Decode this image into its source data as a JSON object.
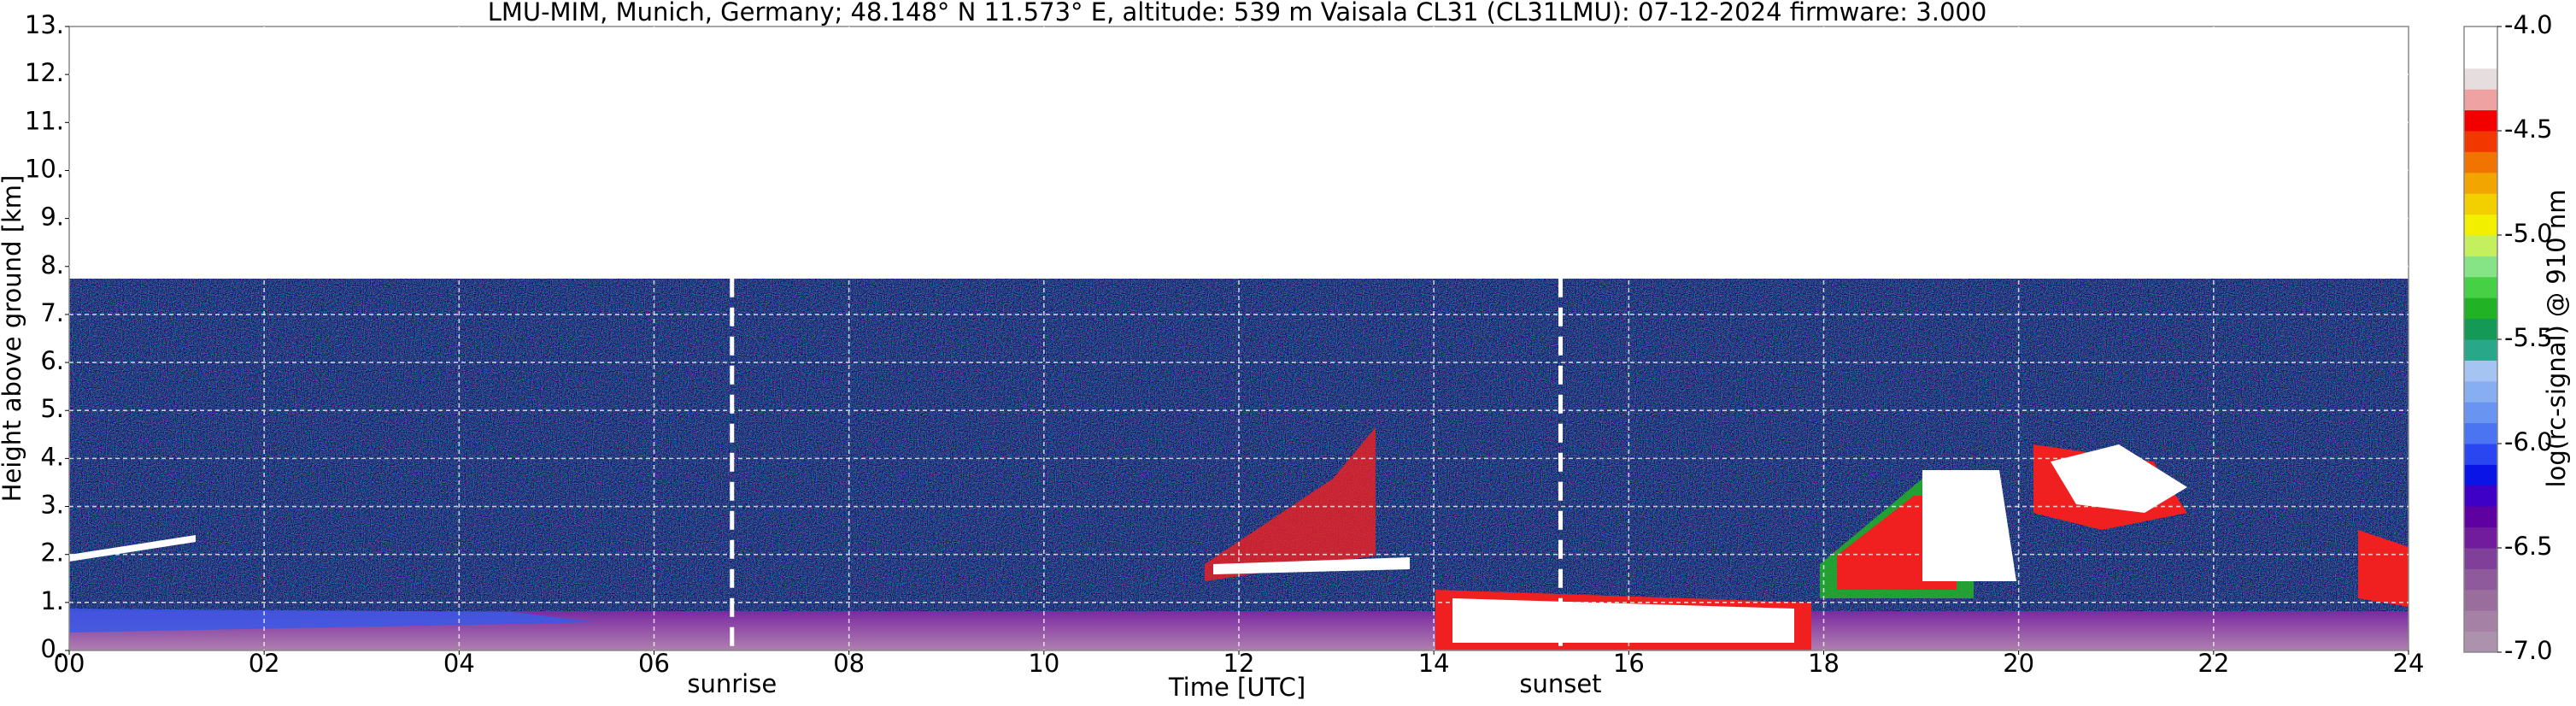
{
  "chart_data": {
    "type": "heatmap",
    "title": "LMU-MIM, Munich, Germany; 48.148° N 11.573° E, altitude: 539 m    Vaisala CL31 (CL31LMU): 07-12-2024    firmware: 3.000",
    "x_label": "Time [UTC]",
    "y_label": "Height above ground [km]",
    "xlim": [
      0,
      24
    ],
    "ylim": [
      0,
      13
    ],
    "xticks": [
      {
        "value": 0,
        "label": "00"
      },
      {
        "value": 2,
        "label": "02"
      },
      {
        "value": 4,
        "label": "04"
      },
      {
        "value": 6,
        "label": "06"
      },
      {
        "value": 8,
        "label": "08"
      },
      {
        "value": 10,
        "label": "10"
      },
      {
        "value": 12,
        "label": "12"
      },
      {
        "value": 14,
        "label": "14"
      },
      {
        "value": 16,
        "label": "16"
      },
      {
        "value": 18,
        "label": "18"
      },
      {
        "value": 20,
        "label": "20"
      },
      {
        "value": 22,
        "label": "22"
      },
      {
        "value": 24,
        "label": "24"
      }
    ],
    "yticks": [
      {
        "value": 0,
        "label": "0."
      },
      {
        "value": 1,
        "label": "1."
      },
      {
        "value": 2,
        "label": "2."
      },
      {
        "value": 3,
        "label": "3."
      },
      {
        "value": 4,
        "label": "4."
      },
      {
        "value": 5,
        "label": "5."
      },
      {
        "value": 6,
        "label": "6."
      },
      {
        "value": 7,
        "label": "7."
      },
      {
        "value": 8,
        "label": "8."
      },
      {
        "value": 9,
        "label": "9."
      },
      {
        "value": 10,
        "label": "10."
      },
      {
        "value": 11,
        "label": "11."
      },
      {
        "value": 12,
        "label": "12."
      },
      {
        "value": 13,
        "label": "13."
      }
    ],
    "grid": true,
    "annotations": [
      {
        "x": 6.8,
        "label": "sunrise"
      },
      {
        "x": 15.3,
        "label": "sunset"
      }
    ],
    "colorbar": {
      "label": "log(rc-signal) @ 910 nm",
      "clim": [
        -7,
        -4
      ],
      "ticks": [
        {
          "value": -7,
          "label": "-7.0"
        },
        {
          "value": -6.5,
          "label": "-6.5"
        },
        {
          "value": -6,
          "label": "-6.0"
        },
        {
          "value": -5.5,
          "label": "-5.5"
        },
        {
          "value": -5,
          "label": "-5.0"
        },
        {
          "value": -4.5,
          "label": "-4.5"
        },
        {
          "value": -4,
          "label": "-4.0"
        }
      ],
      "colors": [
        "#ad92ad",
        "#a581a5",
        "#9a6e9c",
        "#8f5a9b",
        "#80409a",
        "#711c9c",
        "#5f00a0",
        "#3e00c4",
        "#0a14e4",
        "#2a46f0",
        "#4a74f2",
        "#6a94f2",
        "#88aef2",
        "#a6c4f2",
        "#28a888",
        "#149a56",
        "#22b226",
        "#46d046",
        "#86e486",
        "#c4f060",
        "#f2f000",
        "#f2d000",
        "#f2a400",
        "#f27400",
        "#f23800",
        "#f20000",
        "#eea2a2",
        "#e6dede",
        "#ffffff",
        "#ffffff"
      ]
    }
  }
}
